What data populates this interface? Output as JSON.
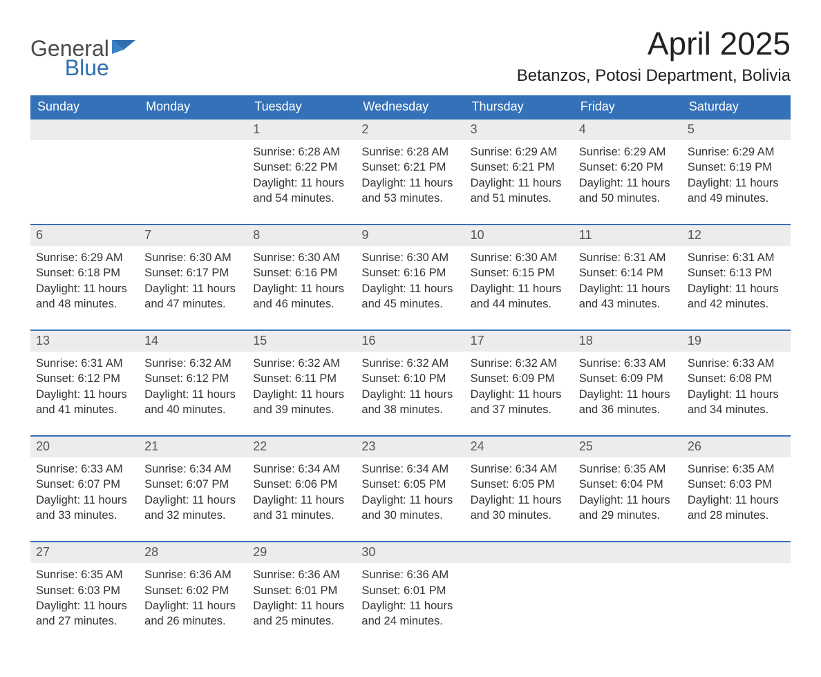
{
  "brand": {
    "line1": "General",
    "line2": "Blue"
  },
  "title": "April 2025",
  "location": "Betanzos, Potosi Department, Bolivia",
  "colors": {
    "header_bg": "#3471b8",
    "header_text": "#ffffff",
    "daynum_bg": "#ececec",
    "daynum_text": "#555555",
    "body_text": "#333333",
    "week_border": "#3471b8",
    "brand_gray": "#4a4a4a",
    "brand_blue": "#2f6fb0"
  },
  "weekdays": [
    "Sunday",
    "Monday",
    "Tuesday",
    "Wednesday",
    "Thursday",
    "Friday",
    "Saturday"
  ],
  "weeks": [
    [
      {
        "day": "",
        "sunrise": "",
        "sunset": "",
        "daylight": ""
      },
      {
        "day": "",
        "sunrise": "",
        "sunset": "",
        "daylight": ""
      },
      {
        "day": "1",
        "sunrise": "Sunrise: 6:28 AM",
        "sunset": "Sunset: 6:22 PM",
        "daylight": "Daylight: 11 hours and 54 minutes."
      },
      {
        "day": "2",
        "sunrise": "Sunrise: 6:28 AM",
        "sunset": "Sunset: 6:21 PM",
        "daylight": "Daylight: 11 hours and 53 minutes."
      },
      {
        "day": "3",
        "sunrise": "Sunrise: 6:29 AM",
        "sunset": "Sunset: 6:21 PM",
        "daylight": "Daylight: 11 hours and 51 minutes."
      },
      {
        "day": "4",
        "sunrise": "Sunrise: 6:29 AM",
        "sunset": "Sunset: 6:20 PM",
        "daylight": "Daylight: 11 hours and 50 minutes."
      },
      {
        "day": "5",
        "sunrise": "Sunrise: 6:29 AM",
        "sunset": "Sunset: 6:19 PM",
        "daylight": "Daylight: 11 hours and 49 minutes."
      }
    ],
    [
      {
        "day": "6",
        "sunrise": "Sunrise: 6:29 AM",
        "sunset": "Sunset: 6:18 PM",
        "daylight": "Daylight: 11 hours and 48 minutes."
      },
      {
        "day": "7",
        "sunrise": "Sunrise: 6:30 AM",
        "sunset": "Sunset: 6:17 PM",
        "daylight": "Daylight: 11 hours and 47 minutes."
      },
      {
        "day": "8",
        "sunrise": "Sunrise: 6:30 AM",
        "sunset": "Sunset: 6:16 PM",
        "daylight": "Daylight: 11 hours and 46 minutes."
      },
      {
        "day": "9",
        "sunrise": "Sunrise: 6:30 AM",
        "sunset": "Sunset: 6:16 PM",
        "daylight": "Daylight: 11 hours and 45 minutes."
      },
      {
        "day": "10",
        "sunrise": "Sunrise: 6:30 AM",
        "sunset": "Sunset: 6:15 PM",
        "daylight": "Daylight: 11 hours and 44 minutes."
      },
      {
        "day": "11",
        "sunrise": "Sunrise: 6:31 AM",
        "sunset": "Sunset: 6:14 PM",
        "daylight": "Daylight: 11 hours and 43 minutes."
      },
      {
        "day": "12",
        "sunrise": "Sunrise: 6:31 AM",
        "sunset": "Sunset: 6:13 PM",
        "daylight": "Daylight: 11 hours and 42 minutes."
      }
    ],
    [
      {
        "day": "13",
        "sunrise": "Sunrise: 6:31 AM",
        "sunset": "Sunset: 6:12 PM",
        "daylight": "Daylight: 11 hours and 41 minutes."
      },
      {
        "day": "14",
        "sunrise": "Sunrise: 6:32 AM",
        "sunset": "Sunset: 6:12 PM",
        "daylight": "Daylight: 11 hours and 40 minutes."
      },
      {
        "day": "15",
        "sunrise": "Sunrise: 6:32 AM",
        "sunset": "Sunset: 6:11 PM",
        "daylight": "Daylight: 11 hours and 39 minutes."
      },
      {
        "day": "16",
        "sunrise": "Sunrise: 6:32 AM",
        "sunset": "Sunset: 6:10 PM",
        "daylight": "Daylight: 11 hours and 38 minutes."
      },
      {
        "day": "17",
        "sunrise": "Sunrise: 6:32 AM",
        "sunset": "Sunset: 6:09 PM",
        "daylight": "Daylight: 11 hours and 37 minutes."
      },
      {
        "day": "18",
        "sunrise": "Sunrise: 6:33 AM",
        "sunset": "Sunset: 6:09 PM",
        "daylight": "Daylight: 11 hours and 36 minutes."
      },
      {
        "day": "19",
        "sunrise": "Sunrise: 6:33 AM",
        "sunset": "Sunset: 6:08 PM",
        "daylight": "Daylight: 11 hours and 34 minutes."
      }
    ],
    [
      {
        "day": "20",
        "sunrise": "Sunrise: 6:33 AM",
        "sunset": "Sunset: 6:07 PM",
        "daylight": "Daylight: 11 hours and 33 minutes."
      },
      {
        "day": "21",
        "sunrise": "Sunrise: 6:34 AM",
        "sunset": "Sunset: 6:07 PM",
        "daylight": "Daylight: 11 hours and 32 minutes."
      },
      {
        "day": "22",
        "sunrise": "Sunrise: 6:34 AM",
        "sunset": "Sunset: 6:06 PM",
        "daylight": "Daylight: 11 hours and 31 minutes."
      },
      {
        "day": "23",
        "sunrise": "Sunrise: 6:34 AM",
        "sunset": "Sunset: 6:05 PM",
        "daylight": "Daylight: 11 hours and 30 minutes."
      },
      {
        "day": "24",
        "sunrise": "Sunrise: 6:34 AM",
        "sunset": "Sunset: 6:05 PM",
        "daylight": "Daylight: 11 hours and 30 minutes."
      },
      {
        "day": "25",
        "sunrise": "Sunrise: 6:35 AM",
        "sunset": "Sunset: 6:04 PM",
        "daylight": "Daylight: 11 hours and 29 minutes."
      },
      {
        "day": "26",
        "sunrise": "Sunrise: 6:35 AM",
        "sunset": "Sunset: 6:03 PM",
        "daylight": "Daylight: 11 hours and 28 minutes."
      }
    ],
    [
      {
        "day": "27",
        "sunrise": "Sunrise: 6:35 AM",
        "sunset": "Sunset: 6:03 PM",
        "daylight": "Daylight: 11 hours and 27 minutes."
      },
      {
        "day": "28",
        "sunrise": "Sunrise: 6:36 AM",
        "sunset": "Sunset: 6:02 PM",
        "daylight": "Daylight: 11 hours and 26 minutes."
      },
      {
        "day": "29",
        "sunrise": "Sunrise: 6:36 AM",
        "sunset": "Sunset: 6:01 PM",
        "daylight": "Daylight: 11 hours and 25 minutes."
      },
      {
        "day": "30",
        "sunrise": "Sunrise: 6:36 AM",
        "sunset": "Sunset: 6:01 PM",
        "daylight": "Daylight: 11 hours and 24 minutes."
      },
      {
        "day": "",
        "sunrise": "",
        "sunset": "",
        "daylight": ""
      },
      {
        "day": "",
        "sunrise": "",
        "sunset": "",
        "daylight": ""
      },
      {
        "day": "",
        "sunrise": "",
        "sunset": "",
        "daylight": ""
      }
    ]
  ]
}
